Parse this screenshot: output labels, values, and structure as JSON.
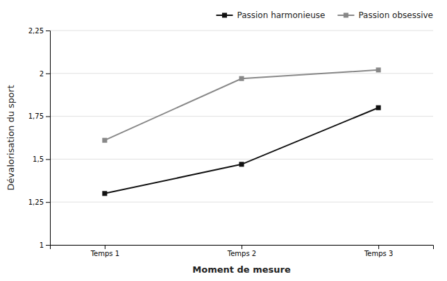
{
  "chart_data": {
    "type": "line",
    "categories": [
      "Temps 1",
      "Temps 2",
      "Temps 3"
    ],
    "x_label": "Moment de mesure",
    "y_label": "Dévalorisation du sport",
    "ylim": [
      1.0,
      2.25
    ],
    "yticks": [
      1,
      {
        "value": 1.25,
        "label": "1,25"
      },
      {
        "value": 1.5,
        "label": "1,5"
      },
      {
        "value": 1.75,
        "label": "1,75"
      },
      2,
      {
        "value": 2.25,
        "label": "2,25"
      }
    ],
    "grid": true,
    "legend": "upper right",
    "series": [
      {
        "name": "Passion harmonieuse",
        "color": "#111111",
        "marker": "square",
        "values": [
          1.3,
          1.47,
          1.8
        ]
      },
      {
        "name": "Passion obsessive",
        "color": "#888888",
        "marker": "square",
        "values": [
          1.61,
          1.97,
          2.02
        ]
      }
    ]
  }
}
